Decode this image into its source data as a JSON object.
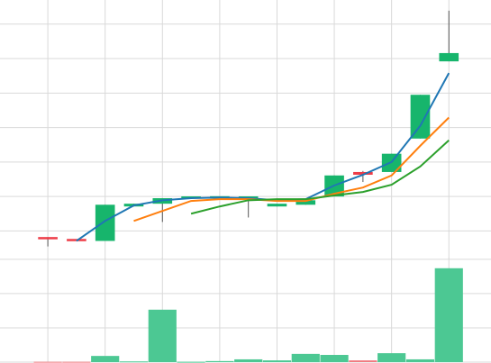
{
  "chart_data": [
    {
      "type": "candlestick",
      "x": [
        0,
        1,
        2,
        3,
        4,
        5,
        6,
        7,
        8,
        9,
        10,
        11,
        12,
        13,
        14
      ],
      "xlim": [
        -1.67,
        15.47
      ],
      "xticks": [
        0,
        2,
        4,
        6,
        8,
        10,
        12,
        14
      ],
      "ylim": [
        0.2,
        7.7
      ],
      "yticks": [
        1,
        2,
        3,
        4,
        5,
        6,
        7
      ],
      "grid": true,
      "up_color": "#17b56c",
      "down_color": "#ee3d48",
      "open": [
        0.82,
        0.76,
        0.71,
        1.71,
        1.79,
        1.97,
        1.95,
        1.97,
        1.71,
        1.76,
        2.0,
        2.71,
        2.71,
        3.68,
        5.92
      ],
      "high": [
        0.82,
        0.76,
        1.76,
        1.79,
        1.95,
        1.97,
        2.0,
        2.0,
        1.79,
        1.89,
        2.61,
        2.74,
        3.24,
        4.95,
        7.39
      ],
      "low": [
        0.55,
        0.71,
        0.71,
        1.71,
        1.26,
        1.97,
        1.95,
        1.39,
        1.71,
        1.76,
        2.0,
        2.42,
        2.71,
        3.68,
        5.92
      ],
      "close": [
        0.76,
        0.71,
        1.76,
        1.79,
        1.95,
        1.97,
        2.0,
        1.97,
        1.79,
        1.89,
        2.61,
        2.63,
        3.24,
        4.95,
        6.16
      ],
      "series": [
        {
          "color": "#1f77b4",
          "values": [
            null,
            0.71,
            1.29,
            1.74,
            1.89,
            1.95,
            1.97,
            1.95,
            1.89,
            1.92,
            2.32,
            2.63,
            3.0,
            4.05,
            5.58
          ]
        },
        {
          "color": "#ff7f0e",
          "values": [
            null,
            null,
            null,
            1.29,
            1.58,
            1.87,
            1.92,
            1.92,
            1.87,
            1.87,
            2.08,
            2.26,
            2.61,
            3.47,
            4.29
          ]
        },
        {
          "color": "#2ca02c",
          "values": [
            null,
            null,
            null,
            null,
            null,
            1.5,
            1.71,
            1.89,
            1.92,
            1.92,
            2.03,
            2.13,
            2.34,
            2.87,
            3.63
          ]
        }
      ]
    },
    {
      "type": "bar",
      "x": [
        0,
        1,
        2,
        3,
        4,
        5,
        6,
        7,
        8,
        9,
        10,
        11,
        12,
        13,
        14
      ],
      "xlim": [
        -1.67,
        15.47
      ],
      "xticks": [
        0,
        2,
        4,
        6,
        8,
        10,
        12,
        14
      ],
      "ylim": [
        0,
        3.05
      ],
      "yticks": [
        0,
        1,
        2,
        3
      ],
      "grid": true,
      "up_color": "#4cc893",
      "down_color": "#f07a80",
      "values": [
        0.01,
        0.01,
        0.18,
        0.02,
        1.53,
        0.01,
        0.03,
        0.08,
        0.05,
        0.24,
        0.21,
        0.05,
        0.26,
        0.08,
        2.74
      ]
    }
  ]
}
